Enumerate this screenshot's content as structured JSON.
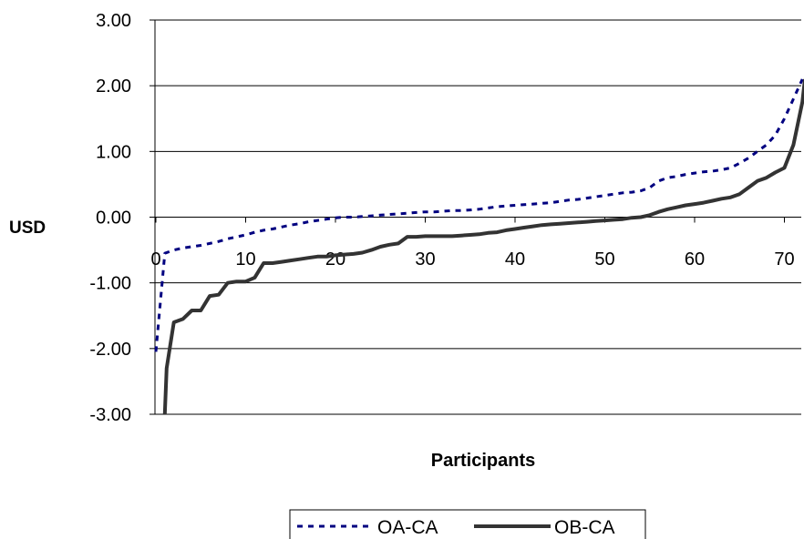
{
  "chart_data": {
    "type": "line",
    "title": "",
    "xlabel": "Participants",
    "ylabel": "USD",
    "xlim": [
      0,
      72
    ],
    "ylim": [
      -3,
      3
    ],
    "x_ticks": [
      0,
      10,
      20,
      30,
      40,
      50,
      60,
      70
    ],
    "x_tick_labels": [
      "0",
      "10",
      "20",
      "30",
      "40",
      "50",
      "60",
      "70"
    ],
    "y_ticks": [
      3,
      2,
      1,
      0,
      -1,
      -2,
      -3
    ],
    "y_tick_labels": [
      "3.00",
      "2.00",
      "1.00",
      "0.00",
      "-1.00",
      "-2.00",
      "-3.00"
    ],
    "grid": "horizontal",
    "legend_position": "bottom",
    "series": [
      {
        "name": "OA-CA",
        "style": "dashed",
        "color": "#000080",
        "points": [
          [
            0,
            -2.05
          ],
          [
            1,
            -0.55
          ],
          [
            2,
            -0.5
          ],
          [
            3,
            -0.47
          ],
          [
            4,
            -0.45
          ],
          [
            5,
            -0.43
          ],
          [
            6,
            -0.4
          ],
          [
            7,
            -0.37
          ],
          [
            8,
            -0.33
          ],
          [
            9,
            -0.3
          ],
          [
            10,
            -0.27
          ],
          [
            11,
            -0.23
          ],
          [
            12,
            -0.2
          ],
          [
            13,
            -0.18
          ],
          [
            14,
            -0.15
          ],
          [
            15,
            -0.12
          ],
          [
            16,
            -0.1
          ],
          [
            17,
            -0.07
          ],
          [
            18,
            -0.05
          ],
          [
            19,
            -0.03
          ],
          [
            20,
            -0.01
          ],
          [
            21,
            0.0
          ],
          [
            22,
            0.0
          ],
          [
            23,
            0.01
          ],
          [
            24,
            0.02
          ],
          [
            25,
            0.03
          ],
          [
            26,
            0.04
          ],
          [
            27,
            0.05
          ],
          [
            28,
            0.06
          ],
          [
            29,
            0.07
          ],
          [
            30,
            0.08
          ],
          [
            31,
            0.08
          ],
          [
            32,
            0.09
          ],
          [
            33,
            0.1
          ],
          [
            34,
            0.1
          ],
          [
            35,
            0.11
          ],
          [
            36,
            0.12
          ],
          [
            37,
            0.14
          ],
          [
            38,
            0.16
          ],
          [
            39,
            0.17
          ],
          [
            40,
            0.18
          ],
          [
            41,
            0.19
          ],
          [
            42,
            0.2
          ],
          [
            43,
            0.21
          ],
          [
            44,
            0.22
          ],
          [
            45,
            0.24
          ],
          [
            46,
            0.26
          ],
          [
            47,
            0.27
          ],
          [
            48,
            0.29
          ],
          [
            49,
            0.31
          ],
          [
            50,
            0.33
          ],
          [
            51,
            0.35
          ],
          [
            52,
            0.37
          ],
          [
            53,
            0.38
          ],
          [
            54,
            0.4
          ],
          [
            55,
            0.45
          ],
          [
            56,
            0.55
          ],
          [
            57,
            0.6
          ],
          [
            58,
            0.62
          ],
          [
            59,
            0.65
          ],
          [
            60,
            0.67
          ],
          [
            61,
            0.69
          ],
          [
            62,
            0.7
          ],
          [
            63,
            0.72
          ],
          [
            64,
            0.75
          ],
          [
            65,
            0.82
          ],
          [
            66,
            0.9
          ],
          [
            67,
            1.0
          ],
          [
            68,
            1.1
          ],
          [
            69,
            1.25
          ],
          [
            70,
            1.5
          ],
          [
            71,
            1.8
          ],
          [
            72,
            2.1
          ]
        ]
      },
      {
        "name": "OB-CA",
        "style": "solid",
        "color": "#333333",
        "points": [
          [
            1,
            -3.0
          ],
          [
            1.2,
            -2.3
          ],
          [
            2,
            -1.6
          ],
          [
            3,
            -1.55
          ],
          [
            4,
            -1.42
          ],
          [
            5,
            -1.42
          ],
          [
            6,
            -1.2
          ],
          [
            7,
            -1.18
          ],
          [
            8,
            -1.0
          ],
          [
            9,
            -0.98
          ],
          [
            10,
            -0.98
          ],
          [
            11,
            -0.92
          ],
          [
            12,
            -0.7
          ],
          [
            13,
            -0.7
          ],
          [
            14,
            -0.68
          ],
          [
            15,
            -0.66
          ],
          [
            16,
            -0.64
          ],
          [
            17,
            -0.62
          ],
          [
            18,
            -0.6
          ],
          [
            19,
            -0.6
          ],
          [
            20,
            -0.58
          ],
          [
            21,
            -0.57
          ],
          [
            22,
            -0.56
          ],
          [
            23,
            -0.54
          ],
          [
            24,
            -0.5
          ],
          [
            25,
            -0.45
          ],
          [
            26,
            -0.42
          ],
          [
            27,
            -0.4
          ],
          [
            28,
            -0.3
          ],
          [
            29,
            -0.3
          ],
          [
            30,
            -0.29
          ],
          [
            31,
            -0.29
          ],
          [
            32,
            -0.29
          ],
          [
            33,
            -0.29
          ],
          [
            34,
            -0.28
          ],
          [
            35,
            -0.27
          ],
          [
            36,
            -0.26
          ],
          [
            37,
            -0.24
          ],
          [
            38,
            -0.23
          ],
          [
            39,
            -0.2
          ],
          [
            40,
            -0.18
          ],
          [
            41,
            -0.16
          ],
          [
            42,
            -0.14
          ],
          [
            43,
            -0.12
          ],
          [
            44,
            -0.11
          ],
          [
            45,
            -0.1
          ],
          [
            46,
            -0.09
          ],
          [
            47,
            -0.08
          ],
          [
            48,
            -0.07
          ],
          [
            49,
            -0.06
          ],
          [
            50,
            -0.05
          ],
          [
            51,
            -0.04
          ],
          [
            52,
            -0.03
          ],
          [
            53,
            -0.01
          ],
          [
            54,
            0.0
          ],
          [
            55,
            0.03
          ],
          [
            56,
            0.08
          ],
          [
            57,
            0.12
          ],
          [
            58,
            0.15
          ],
          [
            59,
            0.18
          ],
          [
            60,
            0.2
          ],
          [
            61,
            0.22
          ],
          [
            62,
            0.25
          ],
          [
            63,
            0.28
          ],
          [
            64,
            0.3
          ],
          [
            65,
            0.35
          ],
          [
            66,
            0.45
          ],
          [
            67,
            0.55
          ],
          [
            68,
            0.6
          ],
          [
            69,
            0.68
          ],
          [
            70,
            0.75
          ],
          [
            71,
            1.1
          ],
          [
            72,
            1.75
          ],
          [
            72.5,
            2.1
          ]
        ]
      }
    ]
  }
}
